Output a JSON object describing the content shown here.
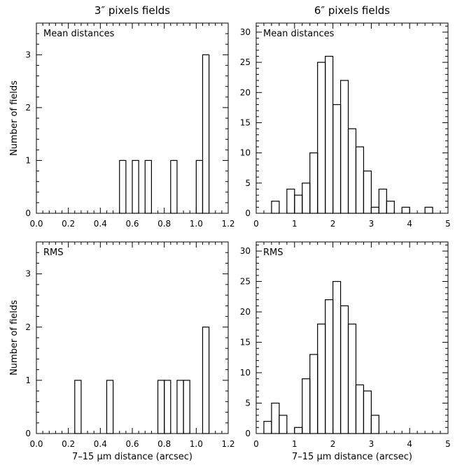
{
  "columns": [
    {
      "title": "3″ pixels fields"
    },
    {
      "title": "6″ pixels fields"
    }
  ],
  "ylabel": "Number of fields",
  "xlabel": "7–15 μm distance (arcsec)",
  "chart_data": [
    {
      "type": "bar",
      "panel_label": "Mean distances",
      "xlim": [
        0.0,
        1.2
      ],
      "ylim": [
        0,
        3.6
      ],
      "xticks": [
        0.0,
        0.2,
        0.4,
        0.6,
        0.8,
        1.0,
        1.2
      ],
      "xtick_labels": [
        "0.0",
        "0.2",
        "0.4",
        "0.6",
        "0.8",
        "1.0",
        "1.2"
      ],
      "yticks": [
        0,
        1,
        2,
        3
      ],
      "ytick_labels": [
        "0",
        "1",
        "2",
        "3"
      ],
      "bin_width": 0.04,
      "bins": [
        {
          "x0": 0.52,
          "value": 1
        },
        {
          "x0": 0.6,
          "value": 1
        },
        {
          "x0": 0.68,
          "value": 1
        },
        {
          "x0": 0.84,
          "value": 1
        },
        {
          "x0": 1.0,
          "value": 1
        },
        {
          "x0": 1.04,
          "value": 3
        }
      ]
    },
    {
      "type": "bar",
      "panel_label": "Mean distances",
      "xlim": [
        0,
        5
      ],
      "ylim": [
        0,
        31.5
      ],
      "xticks": [
        0,
        1,
        2,
        3,
        4,
        5
      ],
      "xtick_labels": [
        "0",
        "1",
        "2",
        "3",
        "4",
        "5"
      ],
      "yticks": [
        0,
        5,
        10,
        15,
        20,
        25,
        30
      ],
      "ytick_labels": [
        "0",
        "5",
        "10",
        "15",
        "20",
        "25",
        "30"
      ],
      "bin_width": 0.2,
      "bins": [
        {
          "x0": 0.0,
          "value": 0
        },
        {
          "x0": 0.2,
          "value": 0
        },
        {
          "x0": 0.4,
          "value": 2
        },
        {
          "x0": 0.6,
          "value": 0
        },
        {
          "x0": 0.8,
          "value": 4
        },
        {
          "x0": 1.0,
          "value": 3
        },
        {
          "x0": 1.2,
          "value": 5
        },
        {
          "x0": 1.4,
          "value": 10
        },
        {
          "x0": 1.6,
          "value": 25
        },
        {
          "x0": 1.8,
          "value": 26
        },
        {
          "x0": 2.0,
          "value": 18
        },
        {
          "x0": 2.2,
          "value": 22
        },
        {
          "x0": 2.4,
          "value": 14
        },
        {
          "x0": 2.6,
          "value": 11
        },
        {
          "x0": 2.8,
          "value": 7
        },
        {
          "x0": 3.0,
          "value": 1
        },
        {
          "x0": 3.2,
          "value": 4
        },
        {
          "x0": 3.4,
          "value": 2
        },
        {
          "x0": 3.6,
          "value": 0
        },
        {
          "x0": 3.8,
          "value": 1
        },
        {
          "x0": 4.0,
          "value": 0
        },
        {
          "x0": 4.2,
          "value": 0
        },
        {
          "x0": 4.4,
          "value": 1
        }
      ]
    },
    {
      "type": "bar",
      "panel_label": "RMS",
      "xlim": [
        0.0,
        1.2
      ],
      "ylim": [
        0,
        3.6
      ],
      "xticks": [
        0.0,
        0.2,
        0.4,
        0.6,
        0.8,
        1.0,
        1.2
      ],
      "xtick_labels": [
        "0.0",
        "0.2",
        "0.4",
        "0.6",
        "0.8",
        "1.0",
        "1.2"
      ],
      "yticks": [
        0,
        1,
        2,
        3
      ],
      "ytick_labels": [
        "0",
        "1",
        "2",
        "3"
      ],
      "bin_width": 0.04,
      "bins": [
        {
          "x0": 0.24,
          "value": 1
        },
        {
          "x0": 0.44,
          "value": 1
        },
        {
          "x0": 0.76,
          "value": 1
        },
        {
          "x0": 0.8,
          "value": 1
        },
        {
          "x0": 0.88,
          "value": 1
        },
        {
          "x0": 0.92,
          "value": 1
        },
        {
          "x0": 1.04,
          "value": 2
        }
      ]
    },
    {
      "type": "bar",
      "panel_label": "RMS",
      "xlim": [
        0,
        5
      ],
      "ylim": [
        0,
        31.5
      ],
      "xticks": [
        0,
        1,
        2,
        3,
        4,
        5
      ],
      "xtick_labels": [
        "0",
        "1",
        "2",
        "3",
        "4",
        "5"
      ],
      "yticks": [
        0,
        5,
        10,
        15,
        20,
        25,
        30
      ],
      "ytick_labels": [
        "0",
        "5",
        "10",
        "15",
        "20",
        "25",
        "30"
      ],
      "bin_width": 0.2,
      "bins": [
        {
          "x0": 0.2,
          "value": 2
        },
        {
          "x0": 0.4,
          "value": 5
        },
        {
          "x0": 0.6,
          "value": 3
        },
        {
          "x0": 0.8,
          "value": 0
        },
        {
          "x0": 1.0,
          "value": 1
        },
        {
          "x0": 1.2,
          "value": 9
        },
        {
          "x0": 1.4,
          "value": 13
        },
        {
          "x0": 1.6,
          "value": 18
        },
        {
          "x0": 1.8,
          "value": 22
        },
        {
          "x0": 2.0,
          "value": 25
        },
        {
          "x0": 2.2,
          "value": 21
        },
        {
          "x0": 2.4,
          "value": 18
        },
        {
          "x0": 2.6,
          "value": 8
        },
        {
          "x0": 2.8,
          "value": 7
        },
        {
          "x0": 3.0,
          "value": 3
        }
      ]
    }
  ]
}
